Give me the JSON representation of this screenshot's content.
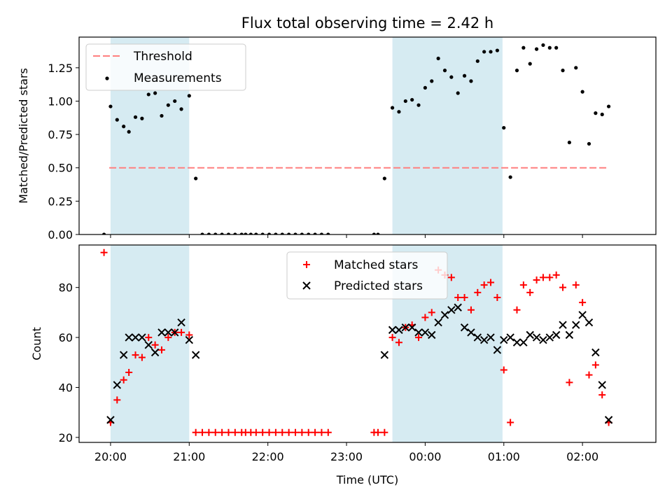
{
  "chart_data": [
    {
      "type": "scatter",
      "title": "Flux total observing time = 2.42 h",
      "ylabel": "Matched/Predicted stars",
      "ylim": [
        0,
        1.48
      ],
      "xlim": [
        "19:36",
        "02:56"
      ],
      "yticks": [
        "0.00",
        "0.25",
        "0.50",
        "0.75",
        "1.00",
        "1.25"
      ],
      "legend": {
        "placement": "top-left",
        "threshold_label": "Threshold",
        "measurements_label": "Measurements"
      },
      "shaded_intervals": [
        [
          "20:00",
          "21:00"
        ],
        [
          "23:35",
          "00:59"
        ]
      ],
      "threshold": {
        "value": 0.5,
        "x_start": "19:59",
        "x_end": "02:20",
        "color": "#ff7f7f"
      },
      "series": [
        {
          "name": "Measurements",
          "color": "#000000",
          "points": [
            [
              "19:55",
              0.0
            ],
            [
              "20:00",
              0.96
            ],
            [
              "20:05",
              0.86
            ],
            [
              "20:10",
              0.81
            ],
            [
              "20:14",
              0.77
            ],
            [
              "20:19",
              0.88
            ],
            [
              "20:24",
              0.87
            ],
            [
              "20:29",
              1.05
            ],
            [
              "20:34",
              1.06
            ],
            [
              "20:39",
              0.89
            ],
            [
              "20:44",
              0.97
            ],
            [
              "20:49",
              1.0
            ],
            [
              "20:54",
              0.94
            ],
            [
              "21:00",
              1.04
            ],
            [
              "21:05",
              0.42
            ],
            [
              "21:10",
              0.0
            ],
            [
              "21:15",
              0.0
            ],
            [
              "21:20",
              0.0
            ],
            [
              "21:25",
              0.0
            ],
            [
              "21:30",
              0.0
            ],
            [
              "21:35",
              0.0
            ],
            [
              "21:40",
              0.0
            ],
            [
              "21:43",
              0.0
            ],
            [
              "21:47",
              0.0
            ],
            [
              "21:51",
              0.0
            ],
            [
              "21:56",
              0.0
            ],
            [
              "22:01",
              0.0
            ],
            [
              "22:06",
              0.0
            ],
            [
              "22:11",
              0.0
            ],
            [
              "22:16",
              0.0
            ],
            [
              "22:21",
              0.0
            ],
            [
              "22:26",
              0.0
            ],
            [
              "22:31",
              0.0
            ],
            [
              "22:36",
              0.0
            ],
            [
              "22:41",
              0.0
            ],
            [
              "22:46",
              0.0
            ],
            [
              "23:21",
              0.0
            ],
            [
              "23:24",
              0.0
            ],
            [
              "23:29",
              0.42
            ],
            [
              "23:35",
              0.95
            ],
            [
              "23:40",
              0.92
            ],
            [
              "23:45",
              1.0
            ],
            [
              "23:50",
              1.01
            ],
            [
              "23:55",
              0.97
            ],
            [
              "00:00",
              1.1
            ],
            [
              "00:05",
              1.15
            ],
            [
              "00:10",
              1.32
            ],
            [
              "00:15",
              1.23
            ],
            [
              "00:20",
              1.18
            ],
            [
              "00:25",
              1.06
            ],
            [
              "00:30",
              1.19
            ],
            [
              "00:35",
              1.15
            ],
            [
              "00:40",
              1.3
            ],
            [
              "00:45",
              1.37
            ],
            [
              "00:50",
              1.37
            ],
            [
              "00:55",
              1.38
            ],
            [
              "01:00",
              0.8
            ],
            [
              "01:05",
              0.43
            ],
            [
              "01:10",
              1.23
            ],
            [
              "01:15",
              1.4
            ],
            [
              "01:20",
              1.28
            ],
            [
              "01:25",
              1.39
            ],
            [
              "01:30",
              1.42
            ],
            [
              "01:35",
              1.4
            ],
            [
              "01:40",
              1.4
            ],
            [
              "01:45",
              1.23
            ],
            [
              "01:50",
              0.69
            ],
            [
              "01:55",
              1.25
            ],
            [
              "02:00",
              1.07
            ],
            [
              "02:05",
              0.68
            ],
            [
              "02:10",
              0.91
            ],
            [
              "02:15",
              0.9
            ],
            [
              "02:20",
              0.96
            ]
          ]
        }
      ]
    },
    {
      "type": "scatter",
      "xlabel": "Time (UTC)",
      "ylabel": "Count",
      "ylim": [
        18,
        97
      ],
      "xlim": [
        "19:36",
        "02:56"
      ],
      "yticks": [
        "20",
        "40",
        "60",
        "80"
      ],
      "xticks": [
        "20:00",
        "21:00",
        "22:00",
        "23:00",
        "00:00",
        "01:00",
        "02:00"
      ],
      "legend": {
        "placement": "top-center"
      },
      "shaded_intervals": [
        [
          "20:00",
          "21:00"
        ],
        [
          "23:35",
          "00:59"
        ]
      ],
      "series": [
        {
          "name": "Matched stars",
          "color": "#ff0000",
          "marker": "plus",
          "points": [
            [
              "19:55",
              94
            ],
            [
              "20:00",
              26
            ],
            [
              "20:05",
              35
            ],
            [
              "20:10",
              43
            ],
            [
              "20:14",
              46
            ],
            [
              "20:19",
              53
            ],
            [
              "20:24",
              52
            ],
            [
              "20:29",
              60
            ],
            [
              "20:34",
              57
            ],
            [
              "20:39",
              55
            ],
            [
              "20:44",
              60
            ],
            [
              "20:49",
              62
            ],
            [
              "20:54",
              62
            ],
            [
              "21:00",
              61
            ],
            [
              "21:05",
              22
            ],
            [
              "21:10",
              22
            ],
            [
              "21:15",
              22
            ],
            [
              "21:20",
              22
            ],
            [
              "21:25",
              22
            ],
            [
              "21:30",
              22
            ],
            [
              "21:35",
              22
            ],
            [
              "21:40",
              22
            ],
            [
              "21:43",
              22
            ],
            [
              "21:47",
              22
            ],
            [
              "21:51",
              22
            ],
            [
              "21:56",
              22
            ],
            [
              "22:01",
              22
            ],
            [
              "22:06",
              22
            ],
            [
              "22:11",
              22
            ],
            [
              "22:16",
              22
            ],
            [
              "22:21",
              22
            ],
            [
              "22:26",
              22
            ],
            [
              "22:31",
              22
            ],
            [
              "22:36",
              22
            ],
            [
              "22:41",
              22
            ],
            [
              "22:46",
              22
            ],
            [
              "23:21",
              22
            ],
            [
              "23:24",
              22
            ],
            [
              "23:29",
              22
            ],
            [
              "23:35",
              60
            ],
            [
              "23:40",
              58
            ],
            [
              "23:45",
              64
            ],
            [
              "23:50",
              65
            ],
            [
              "23:55",
              60
            ],
            [
              "00:00",
              68
            ],
            [
              "00:05",
              70
            ],
            [
              "00:10",
              87
            ],
            [
              "00:15",
              85
            ],
            [
              "00:20",
              84
            ],
            [
              "00:25",
              76
            ],
            [
              "00:30",
              76
            ],
            [
              "00:35",
              71
            ],
            [
              "00:40",
              78
            ],
            [
              "00:45",
              81
            ],
            [
              "00:50",
              82
            ],
            [
              "00:55",
              76
            ],
            [
              "01:00",
              47
            ],
            [
              "01:05",
              26
            ],
            [
              "01:10",
              71
            ],
            [
              "01:15",
              81
            ],
            [
              "01:20",
              78
            ],
            [
              "01:25",
              83
            ],
            [
              "01:30",
              84
            ],
            [
              "01:35",
              84
            ],
            [
              "01:40",
              85
            ],
            [
              "01:45",
              80
            ],
            [
              "01:50",
              42
            ],
            [
              "01:55",
              81
            ],
            [
              "02:00",
              74
            ],
            [
              "02:05",
              45
            ],
            [
              "02:10",
              49
            ],
            [
              "02:15",
              37
            ],
            [
              "02:20",
              26
            ]
          ]
        },
        {
          "name": "Predicted stars",
          "color": "#000000",
          "marker": "x",
          "points": [
            [
              "20:00",
              27
            ],
            [
              "20:05",
              41
            ],
            [
              "20:10",
              53
            ],
            [
              "20:14",
              60
            ],
            [
              "20:19",
              60
            ],
            [
              "20:24",
              60
            ],
            [
              "20:29",
              57
            ],
            [
              "20:34",
              54
            ],
            [
              "20:39",
              62
            ],
            [
              "20:44",
              62
            ],
            [
              "20:49",
              62
            ],
            [
              "20:54",
              66
            ],
            [
              "21:00",
              59
            ],
            [
              "21:05",
              53
            ],
            [
              "23:29",
              53
            ],
            [
              "23:35",
              63
            ],
            [
              "23:40",
              63
            ],
            [
              "23:45",
              64
            ],
            [
              "23:50",
              64
            ],
            [
              "23:55",
              62
            ],
            [
              "00:00",
              62
            ],
            [
              "00:05",
              61
            ],
            [
              "00:10",
              66
            ],
            [
              "00:15",
              69
            ],
            [
              "00:20",
              71
            ],
            [
              "00:25",
              72
            ],
            [
              "00:30",
              64
            ],
            [
              "00:35",
              62
            ],
            [
              "00:40",
              60
            ],
            [
              "00:45",
              59
            ],
            [
              "00:50",
              60
            ],
            [
              "00:55",
              55
            ],
            [
              "01:00",
              59
            ],
            [
              "01:05",
              60
            ],
            [
              "01:10",
              58
            ],
            [
              "01:15",
              58
            ],
            [
              "01:20",
              61
            ],
            [
              "01:25",
              60
            ],
            [
              "01:30",
              59
            ],
            [
              "01:35",
              60
            ],
            [
              "01:40",
              61
            ],
            [
              "01:45",
              65
            ],
            [
              "01:50",
              61
            ],
            [
              "01:55",
              65
            ],
            [
              "02:00",
              69
            ],
            [
              "02:05",
              66
            ],
            [
              "02:10",
              54
            ],
            [
              "02:15",
              41
            ],
            [
              "02:20",
              27
            ]
          ]
        }
      ]
    }
  ]
}
